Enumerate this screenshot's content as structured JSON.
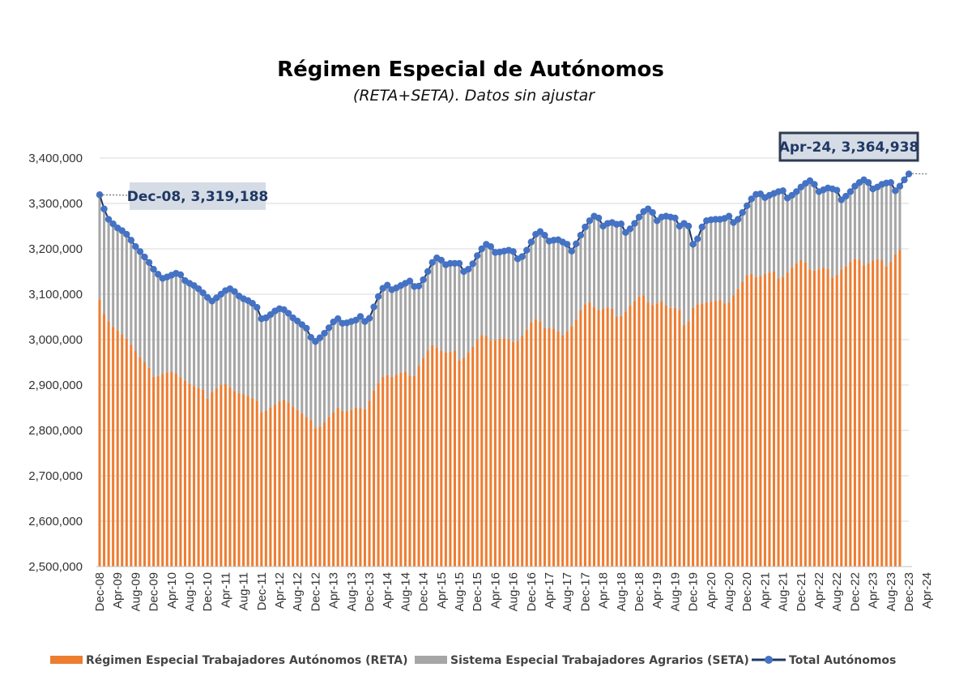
{
  "chart_data": {
    "type": "bar",
    "title": "Régimen Especial de Autónomos",
    "subtitle": "(RETA+SETA). Datos sin ajustar",
    "ylim": [
      2500000,
      3400000
    ],
    "y_ticks": [
      "2,500,000",
      "2,600,000",
      "2,700,000",
      "2,800,000",
      "2,900,000",
      "3,000,000",
      "3,100,000",
      "3,200,000",
      "3,300,000",
      "3,400,000"
    ],
    "x_tick_labels": [
      "Dec-08",
      "Apr-09",
      "Aug-09",
      "Dec-09",
      "Apr-10",
      "Aug-10",
      "Dec-10",
      "Apr-11",
      "Aug-11",
      "Dec-11",
      "Apr-12",
      "Aug-12",
      "Dec-12",
      "Apr-13",
      "Aug-13",
      "Dec-13",
      "Apr-14",
      "Aug-14",
      "Dec-14",
      "Apr-15",
      "Aug-15",
      "Dec-15",
      "Apr-16",
      "Aug-16",
      "Dec-16",
      "Apr-17",
      "Aug-17",
      "Dec-17",
      "Apr-18",
      "Aug-18",
      "Dec-18",
      "Apr-19",
      "Aug-19",
      "Dec-19",
      "Apr-20",
      "Aug-20",
      "Dec-20",
      "Apr-21",
      "Aug-21",
      "Dec-21",
      "Apr-22",
      "Aug-22",
      "Dec-22",
      "Apr-23",
      "Aug-23",
      "Dec-23",
      "Apr-24"
    ],
    "grid": true,
    "legend_position": "bottom",
    "stacked": true,
    "series": [
      {
        "name": "Régimen Especial Trabajadores Autónomos (RETA)",
        "color": "#ed7d31",
        "values": [
          3088000,
          3057000,
          3040000,
          3028000,
          3020000,
          3012000,
          3002000,
          2989000,
          2975000,
          2962000,
          2950000,
          2938000,
          2918000,
          2920000,
          2924000,
          2928000,
          2930000,
          2925000,
          2917000,
          2910000,
          2903000,
          2898000,
          2893000,
          2890000,
          2870000,
          2885000,
          2892000,
          2900000,
          2903000,
          2895000,
          2887000,
          2882000,
          2880000,
          2876000,
          2871000,
          2865000,
          2840000,
          2844000,
          2850000,
          2857000,
          2864000,
          2868000,
          2862000,
          2852000,
          2845000,
          2838000,
          2830000,
          2823000,
          2805000,
          2808000,
          2817000,
          2830000,
          2840000,
          2850000,
          2843000,
          2842000,
          2845000,
          2850000,
          2849000,
          2847000,
          2865000,
          2888000,
          2905000,
          2918000,
          2922000,
          2918000,
          2923000,
          2927000,
          2930000,
          2921000,
          2920000,
          2942000,
          2960000,
          2976000,
          2988000,
          2982000,
          2975000,
          2972000,
          2973000,
          2975000,
          2955000,
          2960000,
          2972000,
          2984000,
          3000000,
          3010000,
          3008000,
          2998000,
          2999000,
          3002000,
          3003000,
          3000000,
          2995000,
          2998000,
          3008000,
          3022000,
          3038000,
          3045000,
          3040000,
          3025000,
          3025000,
          3024000,
          3018000,
          3010000,
          3018000,
          3030000,
          3045000,
          3065000,
          3078000,
          3082000,
          3072000,
          3065000,
          3068000,
          3071000,
          3068000,
          3050000,
          3052000,
          3062000,
          3075000,
          3085000,
          3095000,
          3098000,
          3082000,
          3076000,
          3080000,
          3085000,
          3075000,
          3070000,
          3070000,
          3065000,
          3032000,
          3040000,
          3070000,
          3078000,
          3080000,
          3082000,
          3083000,
          3086000,
          3088000,
          3080000,
          3082000,
          3098000,
          3112000,
          3128000,
          3142000,
          3145000,
          3138000,
          3140000,
          3145000,
          3148000,
          3150000,
          3135000,
          3138000,
          3148000,
          3158000,
          3168000,
          3175000,
          3170000,
          3155000,
          3152000,
          3155000,
          3158000,
          3156000,
          3137000,
          3142000,
          3155000,
          3162000,
          3172000,
          3178000,
          3176000,
          3164000,
          3168000,
          3174000,
          3177000,
          3175000,
          3162000,
          3172000,
          3188000,
          3198000
        ]
      },
      {
        "name": "Sistema Especial Trabajadores Agrarios (SETA)",
        "color": "#a6a6a6"
      },
      {
        "name": "Total Autónomos",
        "color": "#4472c4",
        "values": [
          3319188,
          3288000,
          3265000,
          3255000,
          3246000,
          3240000,
          3232000,
          3219000,
          3205000,
          3194000,
          3182000,
          3170000,
          3155000,
          3144000,
          3135000,
          3138000,
          3142000,
          3146000,
          3143000,
          3130000,
          3124000,
          3119000,
          3112000,
          3103000,
          3093000,
          3085000,
          3092000,
          3100000,
          3108000,
          3112000,
          3106000,
          3096000,
          3090000,
          3086000,
          3080000,
          3071000,
          3046000,
          3048000,
          3055000,
          3063000,
          3068000,
          3066000,
          3058000,
          3048000,
          3041000,
          3033000,
          3025000,
          3005000,
          2996000,
          3004000,
          3014000,
          3026000,
          3039000,
          3046000,
          3036000,
          3037000,
          3040000,
          3043000,
          3051000,
          3040000,
          3047000,
          3072000,
          3095000,
          3113000,
          3120000,
          3110000,
          3114000,
          3119000,
          3124000,
          3129000,
          3117000,
          3118000,
          3132000,
          3150000,
          3170000,
          3180000,
          3175000,
          3165000,
          3168000,
          3168000,
          3168000,
          3150000,
          3155000,
          3167000,
          3185000,
          3200000,
          3210000,
          3205000,
          3192000,
          3193000,
          3195000,
          3197000,
          3194000,
          3178000,
          3183000,
          3197000,
          3215000,
          3232000,
          3238000,
          3230000,
          3217000,
          3219000,
          3220000,
          3215000,
          3210000,
          3195000,
          3211000,
          3230000,
          3248000,
          3262000,
          3272000,
          3268000,
          3250000,
          3256000,
          3258000,
          3254000,
          3255000,
          3236000,
          3244000,
          3256000,
          3270000,
          3282000,
          3288000,
          3280000,
          3262000,
          3270000,
          3272000,
          3270000,
          3268000,
          3250000,
          3256000,
          3250000,
          3210000,
          3222000,
          3248000,
          3262000,
          3264000,
          3265000,
          3265000,
          3267000,
          3272000,
          3258000,
          3265000,
          3280000,
          3295000,
          3310000,
          3320000,
          3321000,
          3313000,
          3318000,
          3322000,
          3326000,
          3328000,
          3312000,
          3318000,
          3326000,
          3336000,
          3344000,
          3350000,
          3342000,
          3326000,
          3330000,
          3334000,
          3332000,
          3329000,
          3308000,
          3316000,
          3326000,
          3338000,
          3346000,
          3352000,
          3346000,
          3332000,
          3336000,
          3342000,
          3345000,
          3346000,
          3328000,
          3338000,
          3352000,
          3364938
        ]
      }
    ],
    "annotations": [
      {
        "text": "Dec-08, 3,319,188",
        "index": 0,
        "value": 3319188
      },
      {
        "text": "Apr-24, 3,364,938",
        "index": 184,
        "value": 3364938
      }
    ]
  }
}
